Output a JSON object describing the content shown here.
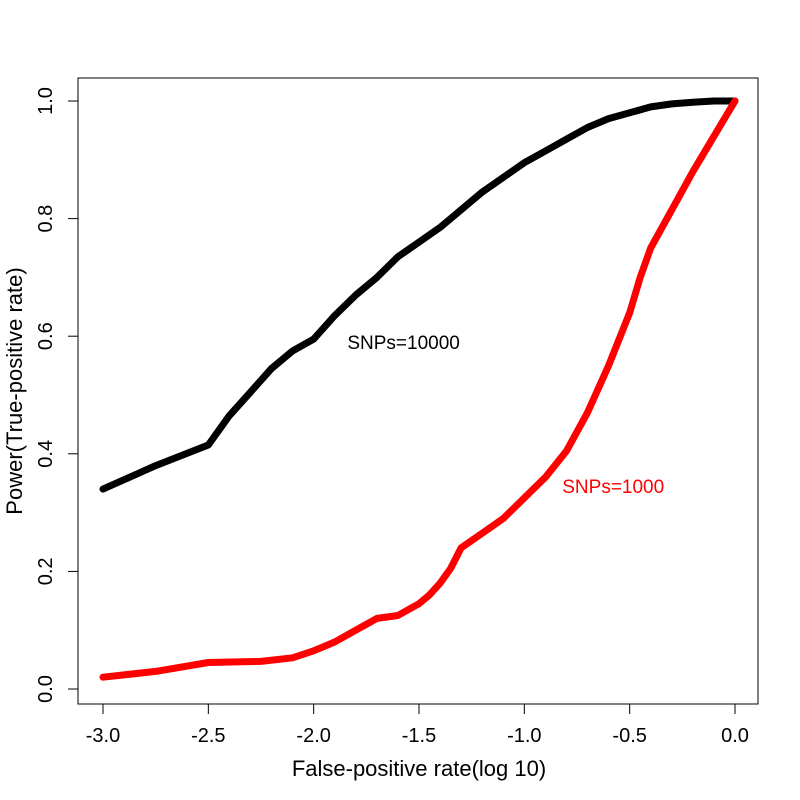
{
  "chart_data": {
    "type": "line",
    "title": "",
    "xlabel": "False-positive rate(log 10)",
    "ylabel": "Power(True-positive rate)",
    "xlim": [
      -3.0,
      0.0
    ],
    "ylim": [
      0.0,
      1.0
    ],
    "grid": false,
    "x_ticks": [
      "-3.0",
      "-2.5",
      "-2.0",
      "-1.5",
      "-1.0",
      "-0.5",
      "0.0"
    ],
    "y_ticks": [
      "0.0",
      "0.2",
      "0.4",
      "0.6",
      "0.8",
      "1.0"
    ],
    "series": [
      {
        "name": "SNPs=10000",
        "color": "#000000",
        "x": [
          -3.0,
          -2.75,
          -2.5,
          -2.4,
          -2.3,
          -2.2,
          -2.1,
          -2.0,
          -1.9,
          -1.8,
          -1.7,
          -1.6,
          -1.5,
          -1.4,
          -1.3,
          -1.2,
          -1.1,
          -1.0,
          -0.9,
          -0.8,
          -0.7,
          -0.6,
          -0.5,
          -0.4,
          -0.3,
          -0.2,
          -0.1,
          0.0
        ],
        "y": [
          0.34,
          0.38,
          0.415,
          0.465,
          0.505,
          0.545,
          0.575,
          0.595,
          0.635,
          0.67,
          0.7,
          0.735,
          0.76,
          0.785,
          0.815,
          0.845,
          0.87,
          0.895,
          0.915,
          0.935,
          0.955,
          0.97,
          0.98,
          0.99,
          0.995,
          0.998,
          1.0,
          1.0
        ]
      },
      {
        "name": "SNPs=1000",
        "color": "#ff0000",
        "x": [
          -3.0,
          -2.75,
          -2.5,
          -2.25,
          -2.1,
          -2.0,
          -1.9,
          -1.8,
          -1.7,
          -1.6,
          -1.5,
          -1.45,
          -1.4,
          -1.35,
          -1.3,
          -1.2,
          -1.1,
          -1.0,
          -0.9,
          -0.8,
          -0.7,
          -0.6,
          -0.5,
          -0.45,
          -0.4,
          -0.3,
          -0.2,
          -0.1,
          0.0
        ],
        "y": [
          0.02,
          0.03,
          0.045,
          0.047,
          0.053,
          0.065,
          0.08,
          0.1,
          0.12,
          0.125,
          0.145,
          0.16,
          0.18,
          0.205,
          0.24,
          0.265,
          0.29,
          0.325,
          0.36,
          0.405,
          0.47,
          0.55,
          0.64,
          0.7,
          0.75,
          0.815,
          0.88,
          0.94,
          1.0
        ]
      }
    ],
    "annotations": [
      {
        "text": "SNPs=10000",
        "x": -1.84,
        "y": 0.59,
        "color": "#000000"
      },
      {
        "text": "SNPs=1000",
        "x": -0.82,
        "y": 0.345,
        "color": "#ff0000"
      }
    ]
  }
}
